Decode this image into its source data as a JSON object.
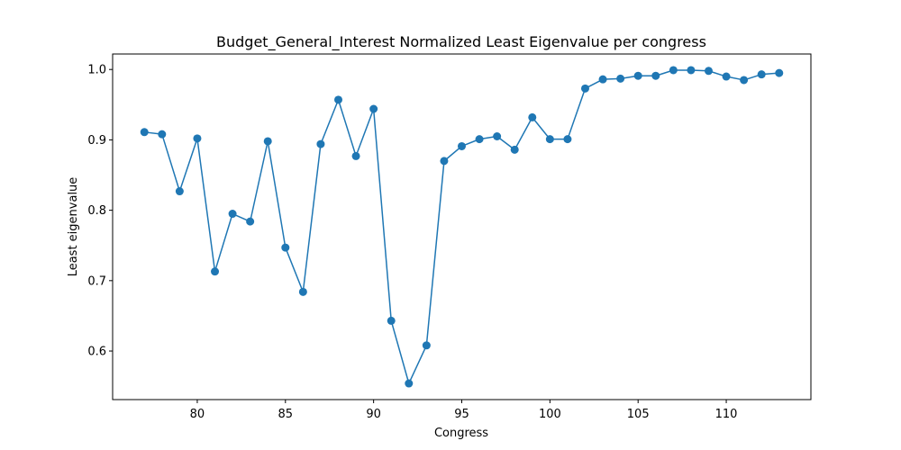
{
  "chart_data": {
    "type": "line",
    "title": "Budget_General_Interest Normalized Least Eigenvalue per congress",
    "xlabel": "Congress",
    "ylabel": "Least eigenvalue",
    "xlim": [
      75.2,
      114.8
    ],
    "ylim": [
      0.531,
      1.022
    ],
    "xticks": [
      80,
      85,
      90,
      95,
      100,
      105,
      110
    ],
    "yticks": [
      0.6,
      0.7,
      0.8,
      0.9,
      1.0
    ],
    "ytick_labels": [
      "0.6",
      "0.7",
      "0.8",
      "0.9",
      "1.0"
    ],
    "grid": false,
    "markers": true,
    "series": [
      {
        "color": "#1f77b4",
        "x": [
          77,
          78,
          79,
          80,
          81,
          82,
          83,
          84,
          85,
          86,
          87,
          88,
          89,
          90,
          91,
          92,
          93,
          94,
          95,
          96,
          97,
          98,
          99,
          100,
          101,
          102,
          103,
          104,
          105,
          106,
          107,
          108,
          109,
          110,
          111,
          112,
          113
        ],
        "y": [
          0.911,
          0.908,
          0.827,
          0.902,
          0.713,
          0.795,
          0.784,
          0.898,
          0.747,
          0.684,
          0.894,
          0.957,
          0.877,
          0.944,
          0.643,
          0.554,
          0.608,
          0.87,
          0.891,
          0.901,
          0.905,
          0.886,
          0.932,
          0.901,
          0.901,
          0.973,
          0.986,
          0.987,
          0.991,
          0.991,
          0.999,
          0.999,
          0.998,
          0.99,
          0.985,
          0.993,
          0.995
        ]
      }
    ]
  }
}
